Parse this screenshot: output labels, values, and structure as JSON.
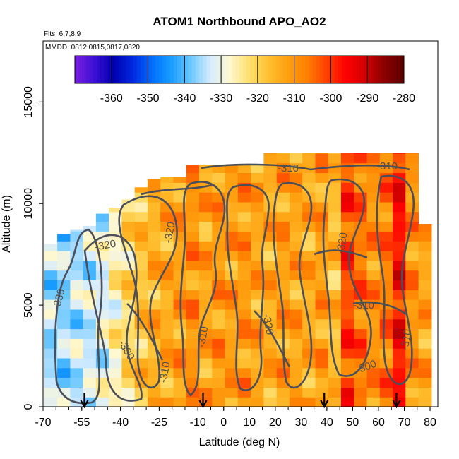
{
  "chart_data": {
    "type": "heatmap",
    "title": "ATOM1 Northbound APO_AO2",
    "subtitle_flights": "Flts: 6,7,8,9",
    "subtitle_dates": "MMDD: 0812,0815,0817,0820",
    "xlabel": "Latitude (deg N)",
    "ylabel": "Altitude (m)",
    "xlim": [
      -70,
      83
    ],
    "ylim": [
      0,
      18000
    ],
    "x_ticks": [
      -70,
      -55,
      -40,
      -25,
      -10,
      0,
      10,
      20,
      30,
      40,
      50,
      60,
      70,
      80
    ],
    "y_ticks": [
      0,
      5000,
      10000,
      15000
    ],
    "colorbar": {
      "range": [
        -370,
        -280
      ],
      "ticks": [
        -360,
        -350,
        -340,
        -330,
        -320,
        -310,
        -300,
        -290,
        -280
      ],
      "colors": [
        "#7a1fe0",
        "#3c10d6",
        "#0000b0",
        "#0028e0",
        "#0070ff",
        "#1a9eff",
        "#6cc8ff",
        "#d6ecff",
        "#fff8d0",
        "#ffe070",
        "#ffc030",
        "#ffa010",
        "#ff8000",
        "#ff4000",
        "#ff0000",
        "#d00000",
        "#8a0000",
        "#5a0000"
      ]
    },
    "contour_labels": [
      "-310",
      "-310",
      "-320",
      "-320",
      "-330",
      "-310",
      "-320",
      "-310",
      "-310",
      "-300",
      "-310",
      "-330",
      "-320"
    ],
    "profile_latitudes": [
      -54,
      -8,
      39,
      67
    ],
    "columns": [
      {
        "lat": -67,
        "top": 8000,
        "value": -335
      },
      {
        "lat": -62,
        "top": 8500,
        "value": -336
      },
      {
        "lat": -57,
        "top": 8700,
        "value": -334
      },
      {
        "lat": -52,
        "top": 8900,
        "value": -333
      },
      {
        "lat": -47,
        "top": 9500,
        "value": -331
      },
      {
        "lat": -42,
        "top": 9800,
        "value": -326
      },
      {
        "lat": -37,
        "top": 10200,
        "value": -321
      },
      {
        "lat": -32,
        "top": 10800,
        "value": -317
      },
      {
        "lat": -27,
        "top": 11200,
        "value": -314
      },
      {
        "lat": -22,
        "top": 11300,
        "value": -313
      },
      {
        "lat": -17,
        "top": 11300,
        "value": -311
      },
      {
        "lat": -12,
        "top": 11900,
        "value": -309
      },
      {
        "lat": -7,
        "top": 11900,
        "value": -312
      },
      {
        "lat": -2,
        "top": 11900,
        "value": -310
      },
      {
        "lat": 3,
        "top": 11900,
        "value": -311
      },
      {
        "lat": 8,
        "top": 11900,
        "value": -310
      },
      {
        "lat": 13,
        "top": 11900,
        "value": -312
      },
      {
        "lat": 18,
        "top": 12500,
        "value": -313
      },
      {
        "lat": 23,
        "top": 12500,
        "value": -311
      },
      {
        "lat": 28,
        "top": 12500,
        "value": -312
      },
      {
        "lat": 33,
        "top": 12500,
        "value": -313
      },
      {
        "lat": 38,
        "top": 12500,
        "value": -311
      },
      {
        "lat": 43,
        "top": 12500,
        "value": -316
      },
      {
        "lat": 48,
        "top": 12500,
        "value": -301
      },
      {
        "lat": 53,
        "top": 12500,
        "value": -305
      },
      {
        "lat": 58,
        "top": 12500,
        "value": -309
      },
      {
        "lat": 63,
        "top": 12500,
        "value": -306
      },
      {
        "lat": 68,
        "top": 12500,
        "value": -296
      },
      {
        "lat": 73,
        "top": 12500,
        "value": -309
      },
      {
        "lat": 78,
        "top": 9000,
        "value": -312
      }
    ]
  }
}
